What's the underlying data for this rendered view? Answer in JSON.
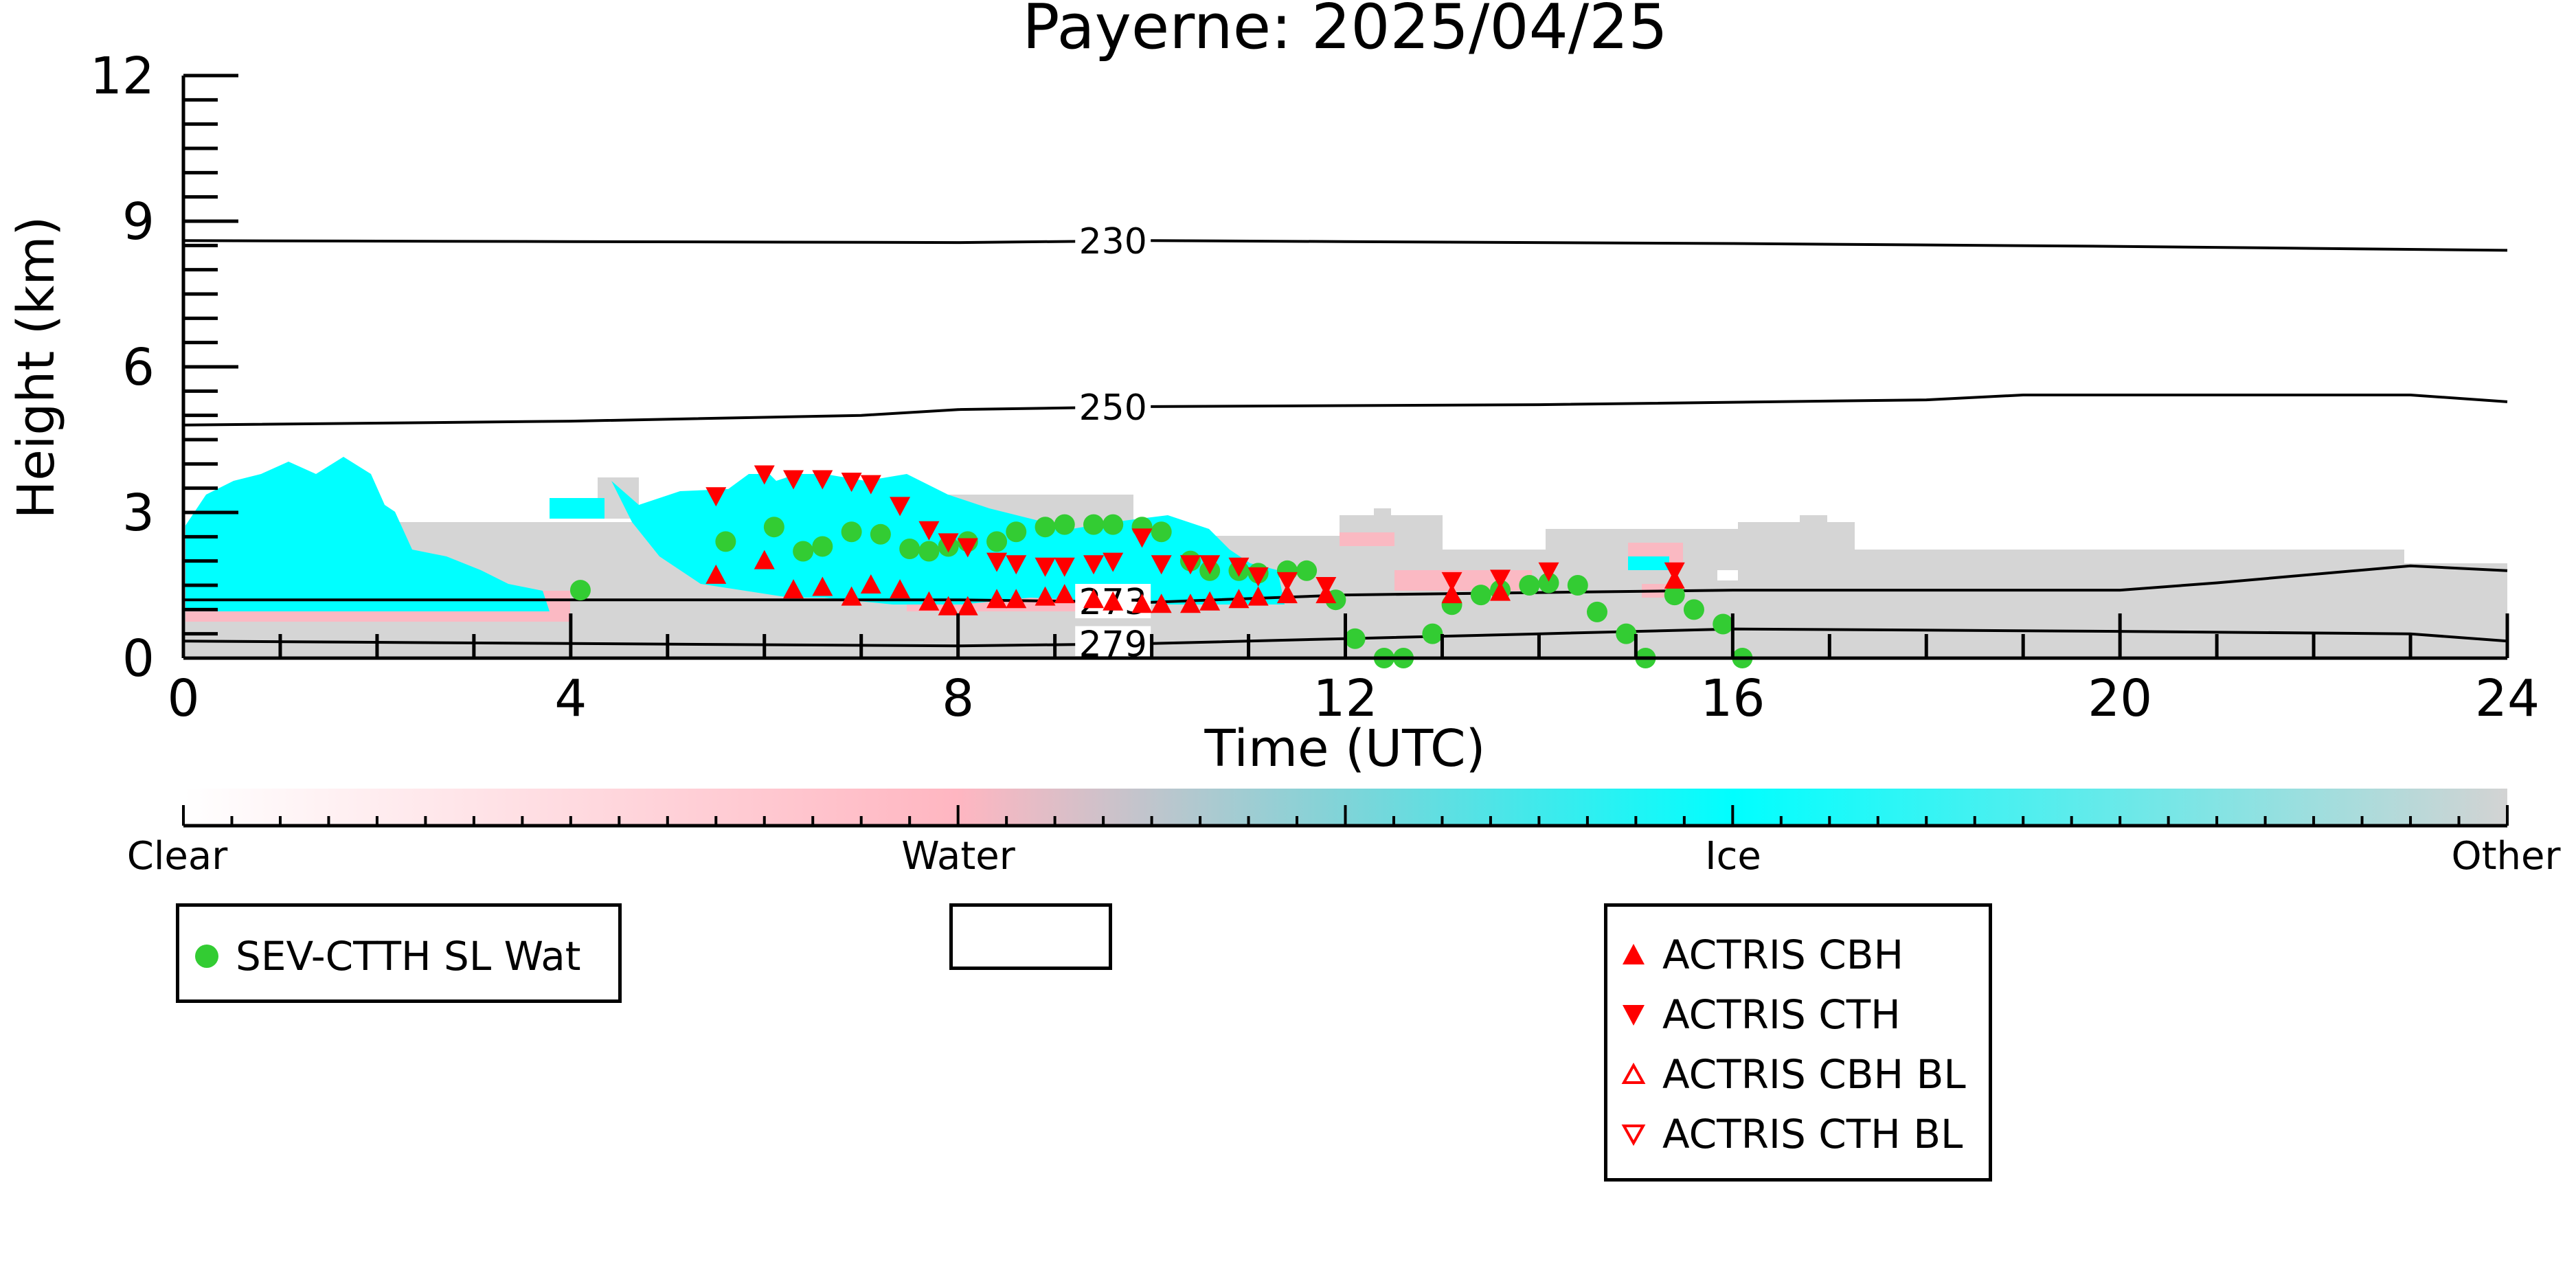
{
  "chart_data": {
    "type": "scatter",
    "title": "Payerne: 2025/04/25",
    "xlabel": "Time (UTC)",
    "ylabel": "Height (km)",
    "xlim": [
      0,
      24
    ],
    "ylim": [
      0,
      12
    ],
    "xticks": [
      "0",
      "4",
      "8",
      "12",
      "16",
      "20",
      "24"
    ],
    "yticks": [
      "0",
      "3",
      "6",
      "9",
      "12"
    ],
    "colorbar": {
      "labels": [
        "Clear",
        "Water",
        "Ice",
        "Other"
      ],
      "colors": [
        "#ffffff",
        "#ffb6c1",
        "#00ffff",
        "#d3d3d3"
      ]
    },
    "contours": [
      {
        "label": "230",
        "label_x": 9.6,
        "points": [
          [
            0,
            8.6
          ],
          [
            4,
            8.58
          ],
          [
            8,
            8.56
          ],
          [
            10,
            8.6
          ],
          [
            12,
            8.58
          ],
          [
            16,
            8.54
          ],
          [
            20,
            8.48
          ],
          [
            22,
            8.44
          ],
          [
            24,
            8.4
          ]
        ]
      },
      {
        "label": "250",
        "label_x": 9.6,
        "points": [
          [
            0,
            4.8
          ],
          [
            4,
            4.88
          ],
          [
            7,
            5.0
          ],
          [
            8,
            5.12
          ],
          [
            10,
            5.18
          ],
          [
            14,
            5.22
          ],
          [
            18,
            5.32
          ],
          [
            19,
            5.42
          ],
          [
            23,
            5.42
          ],
          [
            24,
            5.28
          ]
        ]
      },
      {
        "label": "273",
        "label_x": 9.6,
        "points": [
          [
            0,
            1.2
          ],
          [
            4,
            1.2
          ],
          [
            8,
            1.2
          ],
          [
            10,
            1.15
          ],
          [
            12,
            1.3
          ],
          [
            14,
            1.35
          ],
          [
            16,
            1.4
          ],
          [
            20,
            1.4
          ],
          [
            21,
            1.55
          ],
          [
            23,
            1.9
          ],
          [
            24,
            1.8
          ]
        ]
      },
      {
        "label": "279",
        "label_x": 9.6,
        "points": [
          [
            0,
            0.35
          ],
          [
            4,
            0.3
          ],
          [
            8,
            0.25
          ],
          [
            10,
            0.3
          ],
          [
            12,
            0.4
          ],
          [
            14,
            0.5
          ],
          [
            16,
            0.6
          ],
          [
            20,
            0.55
          ],
          [
            23,
            0.5
          ],
          [
            24,
            0.35
          ]
        ]
      }
    ],
    "series": [
      {
        "name": "SEV-CTTH SL Wat",
        "marker": "circle",
        "color": "#33cc33",
        "points": [
          [
            4.1,
            1.4
          ],
          [
            5.6,
            2.4
          ],
          [
            6.1,
            2.7
          ],
          [
            6.4,
            2.2
          ],
          [
            6.6,
            2.3
          ],
          [
            6.9,
            2.6
          ],
          [
            7.2,
            2.55
          ],
          [
            7.5,
            2.25
          ],
          [
            7.7,
            2.2
          ],
          [
            7.9,
            2.3
          ],
          [
            8.1,
            2.4
          ],
          [
            8.4,
            2.4
          ],
          [
            8.6,
            2.6
          ],
          [
            8.9,
            2.7
          ],
          [
            9.1,
            2.75
          ],
          [
            9.4,
            2.75
          ],
          [
            9.6,
            2.75
          ],
          [
            9.9,
            2.7
          ],
          [
            10.1,
            2.6
          ],
          [
            10.4,
            2.0
          ],
          [
            10.6,
            1.8
          ],
          [
            10.9,
            1.8
          ],
          [
            11.1,
            1.75
          ],
          [
            11.4,
            1.8
          ],
          [
            11.6,
            1.8
          ],
          [
            11.9,
            1.2
          ],
          [
            12.1,
            0.4
          ],
          [
            12.4,
            0.0
          ],
          [
            12.6,
            0.0
          ],
          [
            12.9,
            0.5
          ],
          [
            13.1,
            1.1
          ],
          [
            13.4,
            1.3
          ],
          [
            13.6,
            1.4
          ],
          [
            13.9,
            1.5
          ],
          [
            14.1,
            1.55
          ],
          [
            14.4,
            1.5
          ],
          [
            14.6,
            0.95
          ],
          [
            14.9,
            0.5
          ],
          [
            15.1,
            0.0
          ],
          [
            15.4,
            1.3
          ],
          [
            15.6,
            1.0
          ],
          [
            15.9,
            0.7
          ],
          [
            16.1,
            0.0
          ]
        ]
      },
      {
        "name": "ACTRIS CBH",
        "marker": "triangle-up",
        "color": "#ff0000",
        "points": [
          [
            5.5,
            1.7
          ],
          [
            6.0,
            2.0
          ],
          [
            6.3,
            1.4
          ],
          [
            6.6,
            1.45
          ],
          [
            6.9,
            1.25
          ],
          [
            7.1,
            1.5
          ],
          [
            7.4,
            1.4
          ],
          [
            7.7,
            1.15
          ],
          [
            7.9,
            1.05
          ],
          [
            8.1,
            1.05
          ],
          [
            8.4,
            1.2
          ],
          [
            8.6,
            1.2
          ],
          [
            8.9,
            1.25
          ],
          [
            9.1,
            1.3
          ],
          [
            9.4,
            1.2
          ],
          [
            9.6,
            1.15
          ],
          [
            9.9,
            1.1
          ],
          [
            10.1,
            1.1
          ],
          [
            10.4,
            1.1
          ],
          [
            10.6,
            1.15
          ],
          [
            10.9,
            1.2
          ],
          [
            11.1,
            1.25
          ],
          [
            11.4,
            1.3
          ],
          [
            11.8,
            1.3
          ],
          [
            13.1,
            1.3
          ],
          [
            13.6,
            1.35
          ],
          [
            15.4,
            1.6
          ]
        ]
      },
      {
        "name": "ACTRIS CTH",
        "marker": "triangle-down",
        "color": "#ff0000",
        "points": [
          [
            5.5,
            3.35
          ],
          [
            6.0,
            3.8
          ],
          [
            6.3,
            3.7
          ],
          [
            6.6,
            3.7
          ],
          [
            6.9,
            3.65
          ],
          [
            7.1,
            3.6
          ],
          [
            7.4,
            3.15
          ],
          [
            7.7,
            2.65
          ],
          [
            7.9,
            2.4
          ],
          [
            8.1,
            2.3
          ],
          [
            8.4,
            2.0
          ],
          [
            8.6,
            1.95
          ],
          [
            8.9,
            1.9
          ],
          [
            9.1,
            1.9
          ],
          [
            9.4,
            1.95
          ],
          [
            9.6,
            2.0
          ],
          [
            9.9,
            2.5
          ],
          [
            10.1,
            1.95
          ],
          [
            10.4,
            1.95
          ],
          [
            10.6,
            1.95
          ],
          [
            10.9,
            1.9
          ],
          [
            11.1,
            1.7
          ],
          [
            11.4,
            1.6
          ],
          [
            11.8,
            1.5
          ],
          [
            13.1,
            1.6
          ],
          [
            13.6,
            1.65
          ],
          [
            14.1,
            1.8
          ],
          [
            15.4,
            1.8
          ]
        ]
      },
      {
        "name": "ACTRIS CBH BL",
        "marker": "triangle-up-open",
        "color": "#ff0000",
        "points": []
      },
      {
        "name": "ACTRIS CTH BL",
        "marker": "triangle-down-open",
        "color": "#ff0000",
        "points": []
      }
    ],
    "legends": [
      {
        "entries": [
          "SEV-CTTH SL Wat"
        ]
      },
      {
        "entries": []
      },
      {
        "entries": [
          "ACTRIS CBH",
          "ACTRIS CTH",
          "ACTRIS CBH BL",
          "ACTRIS CTH BL"
        ]
      }
    ],
    "grid": false
  }
}
